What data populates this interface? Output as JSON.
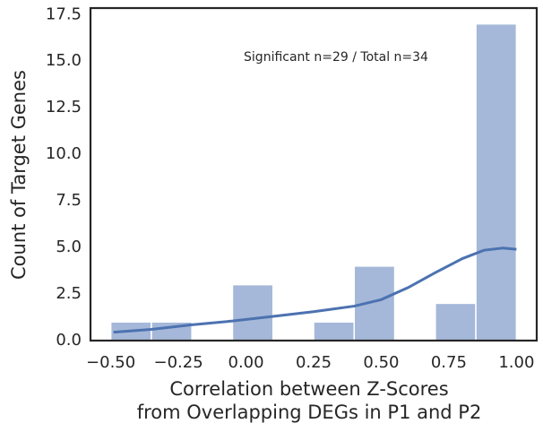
{
  "chart_data": {
    "type": "histogram",
    "bins": [
      -0.5,
      -0.35,
      -0.2,
      -0.05,
      0.1,
      0.25,
      0.4,
      0.55,
      0.7,
      0.85,
      1.0
    ],
    "counts": [
      1,
      1,
      0,
      3,
      0,
      1,
      4,
      0,
      2,
      17
    ],
    "color": "#a5b8d9",
    "kde": {
      "x": [
        -0.49,
        -0.35,
        -0.2,
        -0.05,
        0.1,
        0.25,
        0.4,
        0.5,
        0.6,
        0.7,
        0.8,
        0.88,
        0.95,
        1.0
      ],
      "values": [
        0.45,
        0.6,
        0.85,
        1.05,
        1.3,
        1.55,
        1.85,
        2.2,
        2.85,
        3.65,
        4.4,
        4.85,
        4.97,
        4.9
      ],
      "color": "#4c72b0"
    },
    "annotation": "Significant n=29 / Total n=34",
    "xlabel": [
      "Correlation between Z-Scores",
      "from Overlapping DEGs in P1 and P2"
    ],
    "ylabel": "Count of Target Genes",
    "xlim": [
      -0.575,
      1.075
    ],
    "ylim": [
      0,
      17.85
    ],
    "xticks": [
      {
        "value": -0.5,
        "label": "−0.50"
      },
      {
        "value": -0.25,
        "label": "−0.25"
      },
      {
        "value": 0,
        "label": "0.00"
      },
      {
        "value": 0.25,
        "label": "0.25"
      },
      {
        "value": 0.5,
        "label": "0.50"
      },
      {
        "value": 0.75,
        "label": "0.75"
      },
      {
        "value": 1,
        "label": "1.00"
      }
    ],
    "yticks": [
      {
        "value": 0,
        "label": "0.0"
      },
      2.5,
      {
        "value": 5,
        "label": "5.0"
      },
      7.5,
      {
        "value": 10,
        "label": "10.0"
      },
      12.5,
      {
        "value": 15,
        "label": "15.0"
      },
      17.5
    ]
  }
}
